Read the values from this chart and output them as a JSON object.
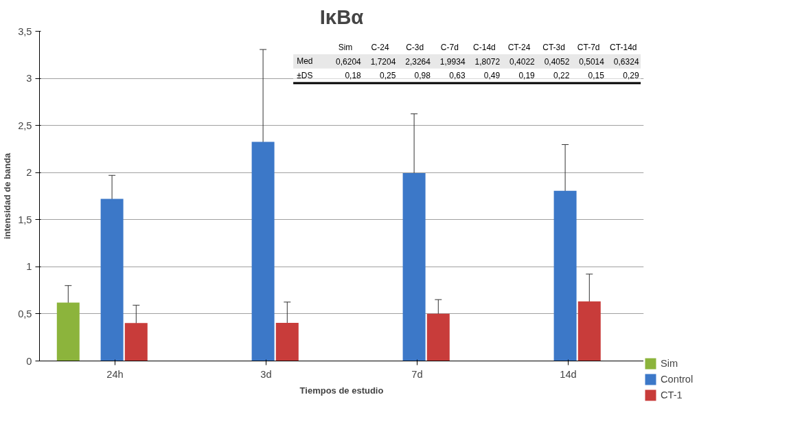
{
  "chart_data": {
    "type": "bar",
    "title": "IκBα",
    "xlabel": "Tiempos de estudio",
    "ylabel": "intensidad de banda",
    "categories": [
      "24h",
      "3d",
      "7d",
      "14d"
    ],
    "series": [
      {
        "name": "Sim",
        "color": "#8cb43c",
        "values": [
          0.6204,
          null,
          null,
          null
        ],
        "errors": [
          0.18,
          null,
          null,
          null
        ]
      },
      {
        "name": "Control",
        "color": "#3c78c8",
        "values": [
          1.7204,
          2.3264,
          1.9934,
          1.8072
        ],
        "errors": [
          0.25,
          0.98,
          0.63,
          0.49
        ]
      },
      {
        "name": "CT-1",
        "color": "#c83c3a",
        "values": [
          0.4022,
          0.4052,
          0.5014,
          0.6324
        ],
        "errors": [
          0.19,
          0.22,
          0.15,
          0.29
        ]
      }
    ],
    "annotations": [
      "Sim",
      "C-24",
      "C-3d",
      "C-7d",
      "C-14d",
      "CT-24",
      "CT-3d",
      "CT-7d",
      "CT-14d",
      "Med",
      "0,6204",
      "1,7204",
      "2,3264",
      "1,9934",
      "1,8072",
      "0,4022",
      "0,4052",
      "0,5014",
      "0,6324",
      "±DS",
      "0,18",
      "0,25",
      "0,98",
      "0,63",
      "0,49",
      "0,19",
      "0,22",
      "0,15",
      "0,29"
    ],
    "ylim": [
      0,
      3.5
    ],
    "yticks": [
      0,
      {
        "value": 0.5,
        "label": "0,5"
      },
      1,
      {
        "value": 1.5,
        "label": "1,5"
      },
      2,
      {
        "value": 2.5,
        "label": "2,5"
      },
      3,
      {
        "value": 3.5,
        "label": "3,5"
      }
    ],
    "grid": "y",
    "legend": "right"
  }
}
